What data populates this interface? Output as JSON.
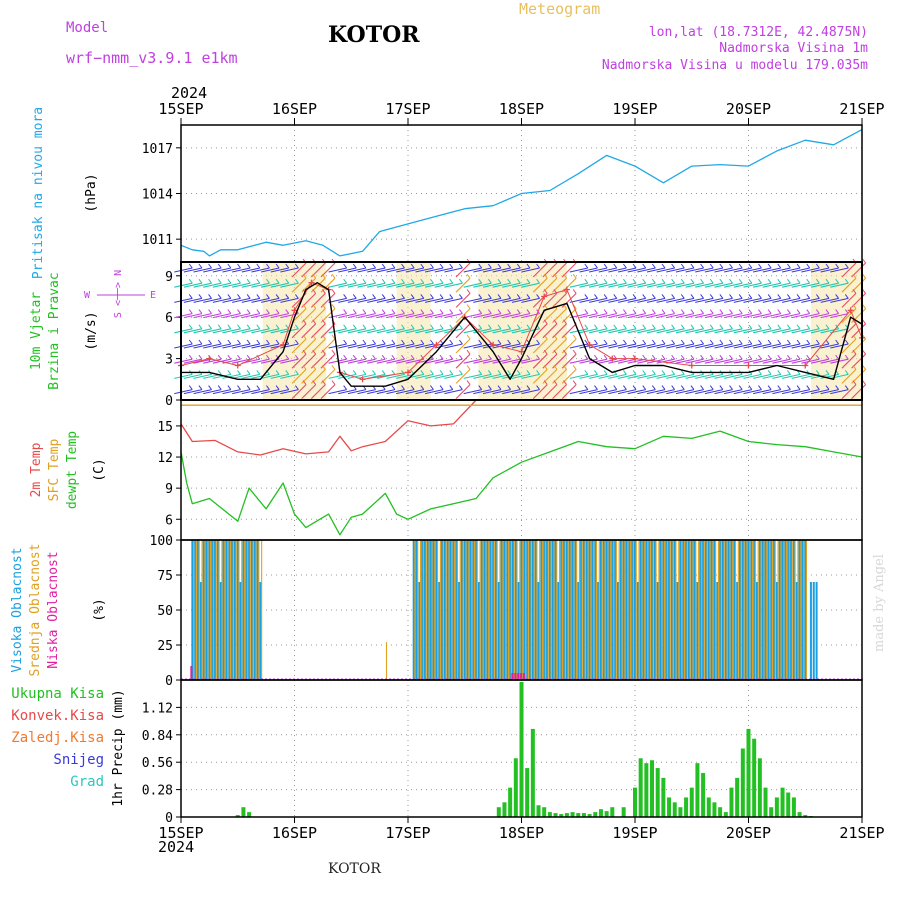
{
  "header": {
    "model_label": "Model",
    "model_name": "wrf−nmm_v3.9.1  e1km",
    "title": "KOTOR",
    "meteogram": "Meteogram",
    "lonlat": "lon,lat (18.7312E, 42.4875N)",
    "elev": "Nadmorska Visina 1m",
    "elev_model": "Nadmorska Visina u modelu 179.035m",
    "year": "2024",
    "footer_station": "KOTOR",
    "credit": "made by Angel"
  },
  "time_axis": {
    "labels": [
      "15SEP",
      "16SEP",
      "17SEP",
      "18SEP",
      "19SEP",
      "20SEP",
      "21SEP"
    ]
  },
  "colors": {
    "pressure": "#22a8e8",
    "temp2m": "#e84a4a",
    "sfc": "#e0a020",
    "dewpt": "#22c022",
    "high_cloud": "#1aa0e0",
    "mid_cloud": "#e0a020",
    "low_cloud": "#e020a0",
    "precip": "#22c022",
    "wind_title": "#22c022",
    "wind_dir": "#c040e0",
    "magenta_text": "#c040e0",
    "title_gold": "#e8c060"
  },
  "chart_data": [
    {
      "type": "line",
      "panel": "pressure",
      "ylabel": [
        "Pritisak na nivou mora",
        "(hPa)"
      ],
      "yticks": [
        1011,
        1014,
        1017
      ],
      "ylim": [
        1009.5,
        1018.5
      ],
      "series": [
        {
          "name": "Pritisak na nivou mora",
          "x": [
            0,
            0.1,
            0.2,
            0.25,
            0.35,
            0.5,
            0.75,
            0.9,
            1.1,
            1.25,
            1.4,
            1.6,
            1.75,
            2.0,
            2.25,
            2.5,
            2.75,
            3.0,
            3.25,
            3.5,
            3.75,
            4.0,
            4.25,
            4.5,
            4.75,
            5.0,
            5.25,
            5.5,
            5.75,
            6.0
          ],
          "values": [
            1010.6,
            1010.3,
            1010.2,
            1009.9,
            1010.3,
            1010.3,
            1010.8,
            1010.6,
            1010.9,
            1010.6,
            1009.9,
            1010.2,
            1011.5,
            1012.0,
            1012.5,
            1013.0,
            1013.2,
            1014.0,
            1014.2,
            1015.3,
            1016.5,
            1015.8,
            1014.7,
            1015.8,
            1015.9,
            1015.8,
            1016.8,
            1017.5,
            1017.2,
            1018.2
          ]
        }
      ]
    },
    {
      "type": "line",
      "panel": "wind",
      "ylabel": [
        "10m Vjetar",
        "Brzina i Pravac",
        "(m/s)"
      ],
      "direction_key": [
        "N",
        "W",
        "E",
        "S"
      ],
      "yticks": [
        0,
        3,
        6,
        9
      ],
      "ylim": [
        0,
        10
      ],
      "series": [
        {
          "name": "brzina",
          "x": [
            0,
            0.25,
            0.5,
            0.7,
            0.9,
            1.0,
            1.1,
            1.2,
            1.3,
            1.4,
            1.5,
            1.6,
            1.8,
            2.0,
            2.25,
            2.5,
            2.75,
            2.9,
            3.0,
            3.2,
            3.4,
            3.6,
            3.8,
            4.0,
            4.25,
            4.5,
            4.75,
            5.0,
            5.25,
            5.5,
            5.75,
            5.9,
            6.0
          ],
          "values": [
            2.0,
            2.0,
            1.5,
            1.5,
            3.5,
            6.0,
            8.0,
            8.5,
            8.0,
            2.0,
            1.0,
            1.0,
            1.0,
            1.5,
            3.5,
            6.0,
            3.5,
            1.5,
            3.0,
            6.5,
            7.0,
            3.0,
            2.0,
            2.5,
            2.5,
            2.0,
            2.0,
            2.0,
            2.5,
            2.0,
            1.5,
            6.0,
            5.5
          ]
        },
        {
          "name": "udari",
          "x": [
            0,
            0.25,
            0.5,
            0.9,
            1.0,
            1.15,
            1.3,
            1.4,
            1.6,
            2.0,
            2.25,
            2.5,
            2.75,
            3.0,
            3.2,
            3.4,
            3.6,
            3.8,
            4.0,
            4.5,
            5.0,
            5.5,
            5.9,
            6.0
          ],
          "values": [
            2.5,
            3.0,
            2.5,
            4.0,
            6.5,
            8.5,
            8.0,
            2.0,
            1.5,
            2.0,
            4.0,
            6.0,
            4.0,
            3.5,
            7.5,
            8.0,
            4.0,
            3.0,
            3.0,
            2.5,
            2.5,
            2.5,
            6.5,
            4.5
          ]
        }
      ]
    },
    {
      "type": "line",
      "panel": "temperature",
      "ylabel": [
        "2m Temp",
        "SFC Temp",
        "dewpt Temp",
        "(C)"
      ],
      "yticks": [
        6,
        9,
        12,
        15
      ],
      "ylim": [
        4,
        17.5
      ],
      "series": [
        {
          "name": "2m Temp",
          "x": [
            0,
            0.1,
            0.3,
            0.5,
            0.7,
            0.9,
            1.1,
            1.3,
            1.4,
            1.5,
            1.6,
            1.8,
            2.0,
            2.2,
            2.4,
            2.6,
            2.75,
            3.0
          ],
          "values": [
            15.2,
            13.5,
            13.6,
            12.5,
            12.2,
            12.8,
            12.3,
            12.5,
            14.0,
            12.6,
            13.0,
            13.5,
            15.5,
            15.0,
            15.2,
            17.5,
            18.5,
            20.0
          ]
        },
        {
          "name": "SFC Temp",
          "x": [
            0,
            6
          ],
          "values": [
            17.0,
            17.0
          ]
        },
        {
          "name": "dewpt Temp",
          "x": [
            0,
            0.05,
            0.1,
            0.25,
            0.5,
            0.6,
            0.75,
            0.9,
            1.0,
            1.1,
            1.3,
            1.4,
            1.5,
            1.6,
            1.8,
            1.9,
            2.0,
            2.2,
            2.4,
            2.6,
            2.75,
            3.0,
            3.25,
            3.5,
            3.75,
            4.0,
            4.25,
            4.5,
            4.75,
            5.0,
            5.25,
            5.5,
            5.75,
            6.0
          ],
          "values": [
            12.5,
            9.5,
            7.5,
            8.0,
            5.8,
            9.0,
            7.0,
            9.5,
            6.5,
            5.2,
            6.5,
            4.5,
            6.2,
            6.5,
            8.5,
            6.5,
            6.0,
            7.0,
            7.5,
            8.0,
            10.0,
            11.5,
            12.5,
            13.5,
            13.0,
            12.8,
            14.0,
            13.8,
            14.5,
            13.5,
            13.2,
            13.0,
            12.5,
            12.0
          ]
        }
      ]
    },
    {
      "type": "bar",
      "panel": "clouds",
      "ylabel": [
        "Visoka Oblacnost",
        "Srednja Oblacnost",
        "Niska Oblacnost",
        "(%)"
      ],
      "yticks": [
        0,
        25,
        50,
        75,
        100
      ],
      "ylim": [
        0,
        100
      ],
      "series": [
        {
          "name": "Visoka Oblacnost",
          "segments": [
            {
              "from": 0.1,
              "to": 0.7,
              "value": 100
            },
            {
              "from": 2.05,
              "to": 2.2,
              "value": 100
            },
            {
              "from": 2.2,
              "to": 5.5,
              "value": 100
            },
            {
              "from": 5.55,
              "to": 5.6,
              "value": 70
            }
          ]
        },
        {
          "name": "Srednja Oblacnost",
          "segments": [
            {
              "from": 0.1,
              "to": 0.7,
              "value": 100
            },
            {
              "from": 1.8,
              "to": 1.82,
              "value": 27
            },
            {
              "from": 2.05,
              "to": 5.5,
              "value": 100
            }
          ]
        },
        {
          "name": "Niska Oblacnost",
          "segments": [
            {
              "from": 0.07,
              "to": 0.09,
              "value": 10
            },
            {
              "from": 2.9,
              "to": 3.0,
              "value": 5
            }
          ]
        }
      ]
    },
    {
      "type": "bar",
      "panel": "precip",
      "ylabel": [
        "1hr Precip (mm)"
      ],
      "legend": [
        "Ukupna Kisa",
        "Konvek.Kisa",
        "Zaledj.Kisa",
        "Snijeg",
        "Grad"
      ],
      "legend_colors": [
        "#22c022",
        "#e84a4a",
        "#f07a30",
        "#3a3ad8",
        "#28c8c0"
      ],
      "yticks": [
        0,
        0.28,
        0.56,
        0.84,
        1.12
      ],
      "ylim": [
        0,
        1.4
      ],
      "series": [
        {
          "name": "Ukupna Kisa",
          "x": [
            0.5,
            0.55,
            0.6,
            2.8,
            2.85,
            2.9,
            2.95,
            3.0,
            3.05,
            3.1,
            3.15,
            3.2,
            3.25,
            3.3,
            3.35,
            3.4,
            3.45,
            3.5,
            3.55,
            3.6,
            3.65,
            3.7,
            3.75,
            3.8,
            3.9,
            4.0,
            4.05,
            4.1,
            4.15,
            4.2,
            4.25,
            4.3,
            4.35,
            4.4,
            4.45,
            4.5,
            4.55,
            4.6,
            4.65,
            4.7,
            4.75,
            4.8,
            4.85,
            4.9,
            4.95,
            5.0,
            5.05,
            5.1,
            5.15,
            5.2,
            5.25,
            5.3,
            5.35,
            5.4,
            5.45,
            5.5,
            5.55
          ],
          "values": [
            0.02,
            0.1,
            0.05,
            0.1,
            0.15,
            0.3,
            0.6,
            1.38,
            0.5,
            0.9,
            0.12,
            0.1,
            0.05,
            0.04,
            0.03,
            0.04,
            0.05,
            0.04,
            0.04,
            0.03,
            0.05,
            0.08,
            0.06,
            0.1,
            0.1,
            0.3,
            0.6,
            0.55,
            0.58,
            0.5,
            0.4,
            0.2,
            0.15,
            0.1,
            0.2,
            0.3,
            0.55,
            0.45,
            0.2,
            0.15,
            0.1,
            0.05,
            0.3,
            0.4,
            0.7,
            0.9,
            0.8,
            0.6,
            0.3,
            0.1,
            0.2,
            0.3,
            0.25,
            0.2,
            0.05,
            0.02,
            0.01
          ]
        }
      ]
    }
  ]
}
